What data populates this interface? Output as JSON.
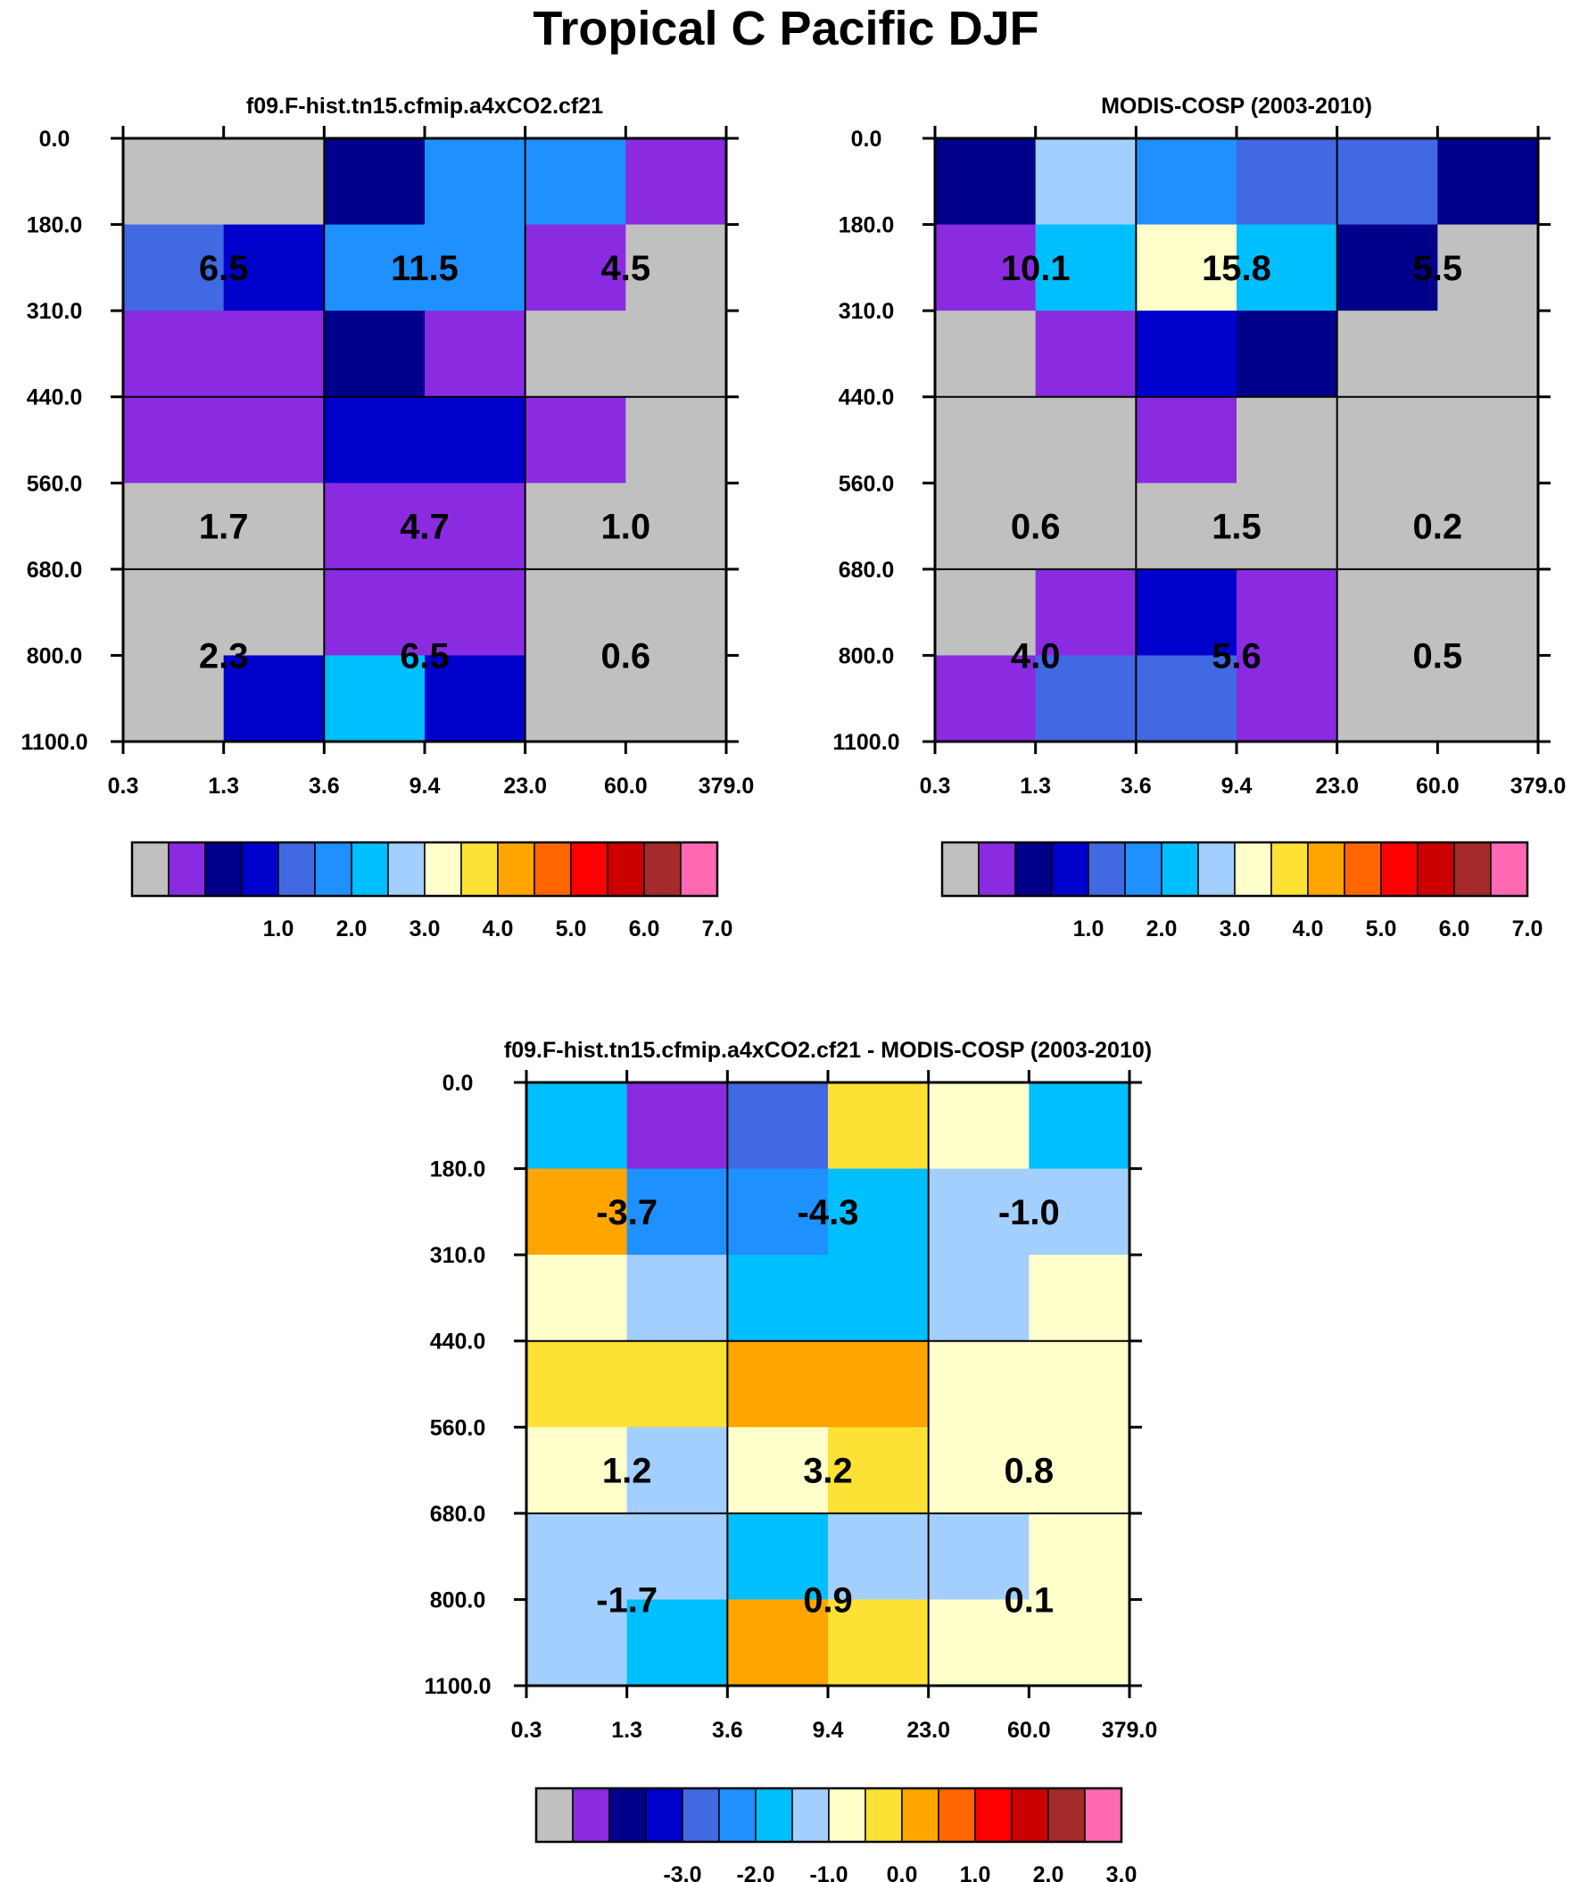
{
  "page": {
    "title": "Tropical C Pacific DJF"
  },
  "chart_data": [
    {
      "type": "heatmap",
      "title": "f09.F-hist.tn15.cfmip.a4xCO2.cf21",
      "x_tick_labels": [
        "0.3",
        "1.3",
        "3.6",
        "9.4",
        "23.0",
        "60.0",
        "379.0"
      ],
      "y_tick_labels": [
        "0.0",
        "180.0",
        "310.0",
        "440.0",
        "560.0",
        "680.0",
        "800.0",
        "1100.0"
      ],
      "cell_colors": [
        [
          "gray",
          "gray",
          "c3",
          "c6",
          "c6",
          "c2"
        ],
        [
          "c5",
          "c4",
          "c6",
          "c6",
          "c2",
          "gray"
        ],
        [
          "c2",
          "c2",
          "c3",
          "c2",
          "gray",
          "gray"
        ],
        [
          "c2",
          "c2",
          "c4",
          "c4",
          "c2",
          "gray"
        ],
        [
          "gray",
          "gray",
          "c2",
          "c2",
          "gray",
          "gray"
        ],
        [
          "gray",
          "gray",
          "c2",
          "c2",
          "gray",
          "gray"
        ],
        [
          "gray",
          "c4",
          "c7",
          "c4",
          "gray",
          "gray"
        ]
      ],
      "block_values": [
        [
          "6.5",
          "11.5",
          "4.5"
        ],
        [
          "1.7",
          "4.7",
          "1.0"
        ],
        [
          "2.3",
          "6.5",
          "0.6"
        ]
      ],
      "colorbar": {
        "labels": [
          "1.0",
          "2.0",
          "3.0",
          "4.0",
          "5.0",
          "6.0",
          "7.0"
        ]
      }
    },
    {
      "type": "heatmap",
      "title": "MODIS-COSP (2003-2010)",
      "x_tick_labels": [
        "0.3",
        "1.3",
        "3.6",
        "9.4",
        "23.0",
        "60.0",
        "379.0"
      ],
      "y_tick_labels": [
        "0.0",
        "180.0",
        "310.0",
        "440.0",
        "560.0",
        "680.0",
        "800.0",
        "1100.0"
      ],
      "cell_colors": [
        [
          "c3",
          "c8",
          "c6",
          "c5",
          "c5",
          "c3"
        ],
        [
          "c2",
          "c7",
          "c9",
          "c7",
          "c3",
          "gray"
        ],
        [
          "gray",
          "c2",
          "c4",
          "c3",
          "gray",
          "gray"
        ],
        [
          "gray",
          "gray",
          "c2",
          "gray",
          "gray",
          "gray"
        ],
        [
          "gray",
          "gray",
          "gray",
          "gray",
          "gray",
          "gray"
        ],
        [
          "gray",
          "c2",
          "c4",
          "c2",
          "gray",
          "gray"
        ],
        [
          "c2",
          "c5",
          "c5",
          "c2",
          "gray",
          "gray"
        ]
      ],
      "block_values": [
        [
          "10.1",
          "15.8",
          "5.5"
        ],
        [
          "0.6",
          "1.5",
          "0.2"
        ],
        [
          "4.0",
          "5.6",
          "0.5"
        ]
      ],
      "colorbar": {
        "labels": [
          "1.0",
          "2.0",
          "3.0",
          "4.0",
          "5.0",
          "6.0",
          "7.0"
        ]
      }
    },
    {
      "type": "heatmap",
      "title": "f09.F-hist.tn15.cfmip.a4xCO2.cf21 - MODIS-COSP (2003-2010)",
      "x_tick_labels": [
        "0.3",
        "1.3",
        "3.6",
        "9.4",
        "23.0",
        "60.0",
        "379.0"
      ],
      "y_tick_labels": [
        "0.0",
        "180.0",
        "310.0",
        "440.0",
        "560.0",
        "680.0",
        "800.0",
        "1100.0"
      ],
      "cell_colors": [
        [
          "c7",
          "c2",
          "c5",
          "c10",
          "c9",
          "c7"
        ],
        [
          "c11",
          "c6",
          "c6",
          "c7",
          "c8",
          "c8"
        ],
        [
          "c9",
          "c8",
          "c7",
          "c7",
          "c8",
          "c9"
        ],
        [
          "c10",
          "c10",
          "c11",
          "c11",
          "c9",
          "c9"
        ],
        [
          "c9",
          "c8",
          "c9",
          "c10",
          "c9",
          "c9"
        ],
        [
          "c8",
          "c8",
          "c7",
          "c8",
          "c8",
          "c9"
        ],
        [
          "c8",
          "c7",
          "c11",
          "c10",
          "c9",
          "c9"
        ]
      ],
      "block_values": [
        [
          "-3.7",
          "-4.3",
          "-1.0"
        ],
        [
          "1.2",
          "3.2",
          "0.8"
        ],
        [
          "-1.7",
          "0.9",
          "0.1"
        ]
      ],
      "colorbar": {
        "labels": [
          "-3.0",
          "-2.0",
          "-1.0",
          "0.0",
          "1.0",
          "2.0",
          "3.0"
        ]
      }
    }
  ],
  "palette": {
    "gray": "#c0c0c0",
    "c2": "#8a2be2",
    "c3": "#00008b",
    "c4": "#0000cd",
    "c5": "#4169e1",
    "c6": "#1e90ff",
    "c7": "#00bfff",
    "c8": "#a2cffe",
    "c9": "#ffffcc",
    "c10": "#fee135",
    "c11": "#ffa500",
    "c12": "#ff6600",
    "c13": "#ff0000",
    "c14": "#cc0000",
    "c15": "#a52a2a",
    "c16": "#ff69b4"
  },
  "colorbar_swatches": [
    "gray",
    "c2",
    "c3",
    "c4",
    "c5",
    "c6",
    "c7",
    "c8",
    "c9",
    "c10",
    "c11",
    "c12",
    "c13",
    "c14",
    "c15",
    "c16"
  ]
}
